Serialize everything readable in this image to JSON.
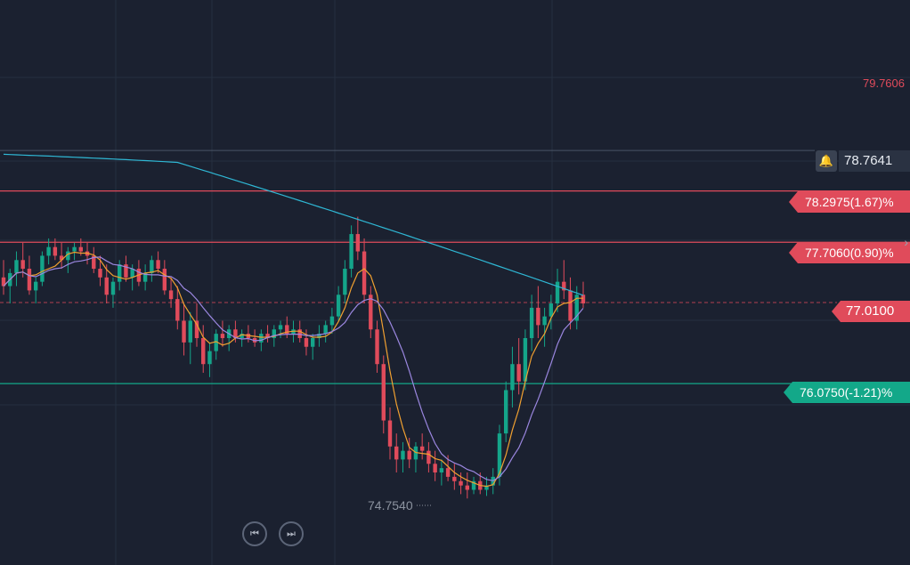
{
  "chart_data": {
    "type": "candlestick",
    "ylim": [
      73.9827,
      80.5
    ],
    "axis_top_label": "79.7606",
    "alert_price": "78.7641",
    "levels": [
      {
        "name": "upper",
        "label": "78.2975(1.67)%",
        "value": 78.2975,
        "color": "#e04b5b"
      },
      {
        "name": "middle",
        "label": "77.7060(0.90)%",
        "value": 77.706,
        "color": "#e04b5b"
      },
      {
        "name": "lower",
        "label": "76.0750(-1.21)%",
        "value": 76.075,
        "color": "#13a889"
      }
    ],
    "current_price": {
      "label": "77.0100",
      "value": 77.01
    },
    "low_marker": {
      "label": "74.7540",
      "value": 74.754
    },
    "candles": [
      [
        77.3,
        77.5,
        77.1,
        77.2
      ],
      [
        77.2,
        77.4,
        77.0,
        77.35
      ],
      [
        77.35,
        77.6,
        77.2,
        77.5
      ],
      [
        77.5,
        77.7,
        77.3,
        77.4
      ],
      [
        77.4,
        77.55,
        77.1,
        77.15
      ],
      [
        77.15,
        77.3,
        77.0,
        77.25
      ],
      [
        77.25,
        77.6,
        77.2,
        77.55
      ],
      [
        77.55,
        77.75,
        77.45,
        77.65
      ],
      [
        77.65,
        77.75,
        77.5,
        77.55
      ],
      [
        77.55,
        77.7,
        77.4,
        77.5
      ],
      [
        77.5,
        77.65,
        77.35,
        77.6
      ],
      [
        77.6,
        77.7,
        77.5,
        77.65
      ],
      [
        77.65,
        77.75,
        77.55,
        77.6
      ],
      [
        77.6,
        77.7,
        77.45,
        77.55
      ],
      [
        77.55,
        77.65,
        77.35,
        77.4
      ],
      [
        77.4,
        77.55,
        77.2,
        77.3
      ],
      [
        77.3,
        77.45,
        77.0,
        77.1
      ],
      [
        77.1,
        77.3,
        76.95,
        77.25
      ],
      [
        77.25,
        77.5,
        77.15,
        77.45
      ],
      [
        77.45,
        77.55,
        77.25,
        77.3
      ],
      [
        77.3,
        77.45,
        77.15,
        77.4
      ],
      [
        77.4,
        77.5,
        77.2,
        77.25
      ],
      [
        77.25,
        77.45,
        77.15,
        77.35
      ],
      [
        77.35,
        77.55,
        77.25,
        77.5
      ],
      [
        77.5,
        77.6,
        77.35,
        77.4
      ],
      [
        77.4,
        77.5,
        77.1,
        77.15
      ],
      [
        77.15,
        77.3,
        76.95,
        77.05
      ],
      [
        77.05,
        77.2,
        76.7,
        76.8
      ],
      [
        76.8,
        77.0,
        76.4,
        76.55
      ],
      [
        76.55,
        76.9,
        76.3,
        76.8
      ],
      [
        76.8,
        77.0,
        76.5,
        76.6
      ],
      [
        76.6,
        76.75,
        76.2,
        76.3
      ],
      [
        76.3,
        76.55,
        76.15,
        76.45
      ],
      [
        76.45,
        76.7,
        76.35,
        76.65
      ],
      [
        76.65,
        76.8,
        76.5,
        76.6
      ],
      [
        76.6,
        76.75,
        76.45,
        76.7
      ],
      [
        76.7,
        76.8,
        76.55,
        76.6
      ],
      [
        76.6,
        76.7,
        76.5,
        76.65
      ],
      [
        76.65,
        76.75,
        76.55,
        76.6
      ],
      [
        76.6,
        76.7,
        76.5,
        76.55
      ],
      [
        76.55,
        76.7,
        76.45,
        76.65
      ],
      [
        76.65,
        76.75,
        76.55,
        76.6
      ],
      [
        76.6,
        76.75,
        76.5,
        76.7
      ],
      [
        76.7,
        76.8,
        76.6,
        76.75
      ],
      [
        76.75,
        76.85,
        76.6,
        76.65
      ],
      [
        76.65,
        76.8,
        76.55,
        76.7
      ],
      [
        76.7,
        76.8,
        76.55,
        76.6
      ],
      [
        76.6,
        76.7,
        76.4,
        76.5
      ],
      [
        76.5,
        76.65,
        76.35,
        76.6
      ],
      [
        76.6,
        76.75,
        76.5,
        76.65
      ],
      [
        76.65,
        76.8,
        76.55,
        76.75
      ],
      [
        76.75,
        76.95,
        76.65,
        76.85
      ],
      [
        76.85,
        77.2,
        76.8,
        77.1
      ],
      [
        77.1,
        77.5,
        77.0,
        77.4
      ],
      [
        77.4,
        77.9,
        77.3,
        77.8
      ],
      [
        77.8,
        78.0,
        77.5,
        77.6
      ],
      [
        77.6,
        77.75,
        77.0,
        77.1
      ],
      [
        77.1,
        77.2,
        76.6,
        76.7
      ],
      [
        76.7,
        76.8,
        76.2,
        76.3
      ],
      [
        76.3,
        76.4,
        75.5,
        75.65
      ],
      [
        75.65,
        75.8,
        75.2,
        75.35
      ],
      [
        75.35,
        75.5,
        75.05,
        75.2
      ],
      [
        75.2,
        75.4,
        75.05,
        75.3
      ],
      [
        75.3,
        75.45,
        75.1,
        75.2
      ],
      [
        75.2,
        75.4,
        75.05,
        75.35
      ],
      [
        75.35,
        75.5,
        75.2,
        75.3
      ],
      [
        75.3,
        75.4,
        75.05,
        75.15
      ],
      [
        75.15,
        75.3,
        74.95,
        75.05
      ],
      [
        75.05,
        75.2,
        74.9,
        75.1
      ],
      [
        75.1,
        75.25,
        74.95,
        75.0
      ],
      [
        75.0,
        75.15,
        74.85,
        74.95
      ],
      [
        74.95,
        75.05,
        74.8,
        74.9
      ],
      [
        74.9,
        75.05,
        74.75,
        74.85
      ],
      [
        74.85,
        75.0,
        74.8,
        74.95
      ],
      [
        74.95,
        75.05,
        74.8,
        74.85
      ],
      [
        74.85,
        75.0,
        74.78,
        74.9
      ],
      [
        74.9,
        75.1,
        74.8,
        75.0
      ],
      [
        75.0,
        75.6,
        74.9,
        75.5
      ],
      [
        75.5,
        76.1,
        75.4,
        76.0
      ],
      [
        76.0,
        76.5,
        75.8,
        76.3
      ],
      [
        76.3,
        76.6,
        75.95,
        76.1
      ],
      [
        76.1,
        76.7,
        76.0,
        76.6
      ],
      [
        76.6,
        77.1,
        76.45,
        76.95
      ],
      [
        76.95,
        77.2,
        76.6,
        76.75
      ],
      [
        76.75,
        76.95,
        76.5,
        76.85
      ],
      [
        76.85,
        77.1,
        76.7,
        77.0
      ],
      [
        77.0,
        77.4,
        76.9,
        77.25
      ],
      [
        77.25,
        77.5,
        77.05,
        77.15
      ],
      [
        77.15,
        77.3,
        76.7,
        76.8
      ],
      [
        76.8,
        77.2,
        76.7,
        77.1
      ],
      [
        77.1,
        77.25,
        76.95,
        77.0
      ]
    ]
  }
}
